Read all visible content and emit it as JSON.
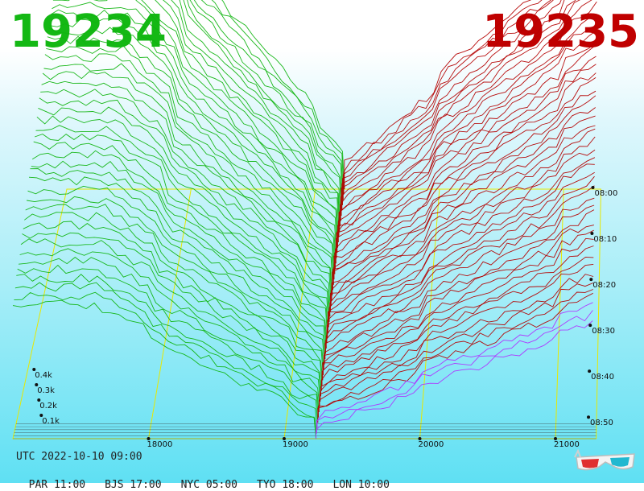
{
  "header": {
    "bid_price": "19234",
    "ask_price": "19235",
    "bid_color": "#14b814",
    "ask_color": "#c00000"
  },
  "chart_data": {
    "type": "area",
    "price_ticks": [
      "18000",
      "19000",
      "20000",
      "21000"
    ],
    "price_tick_values": [
      18000,
      19000,
      20000,
      21000
    ],
    "volume_ticks": [
      "0.1k",
      "0.2k",
      "0.3k",
      "0.4k"
    ],
    "volume_tick_values": [
      100,
      200,
      300,
      400
    ],
    "time_ticks": [
      "08:00",
      "08:10",
      "08:20",
      "08:30",
      "08:40",
      "08:50"
    ],
    "price_range": [
      17000,
      21300
    ],
    "series": [
      {
        "name": "bids",
        "color": "#0fb40f"
      },
      {
        "name": "asks",
        "color": "#b40000"
      }
    ],
    "mid_price": 19234.5,
    "grid_color": "#e8e800"
  },
  "footer": {
    "utc": "UTC 2022-10-10 09:00",
    "clocks": [
      "PAR 11:00",
      "BJS 17:00",
      "NYC 05:00",
      "TYO 18:00",
      "LON 10:00"
    ]
  },
  "icons": {
    "glasses": "3d-glasses-icon"
  }
}
